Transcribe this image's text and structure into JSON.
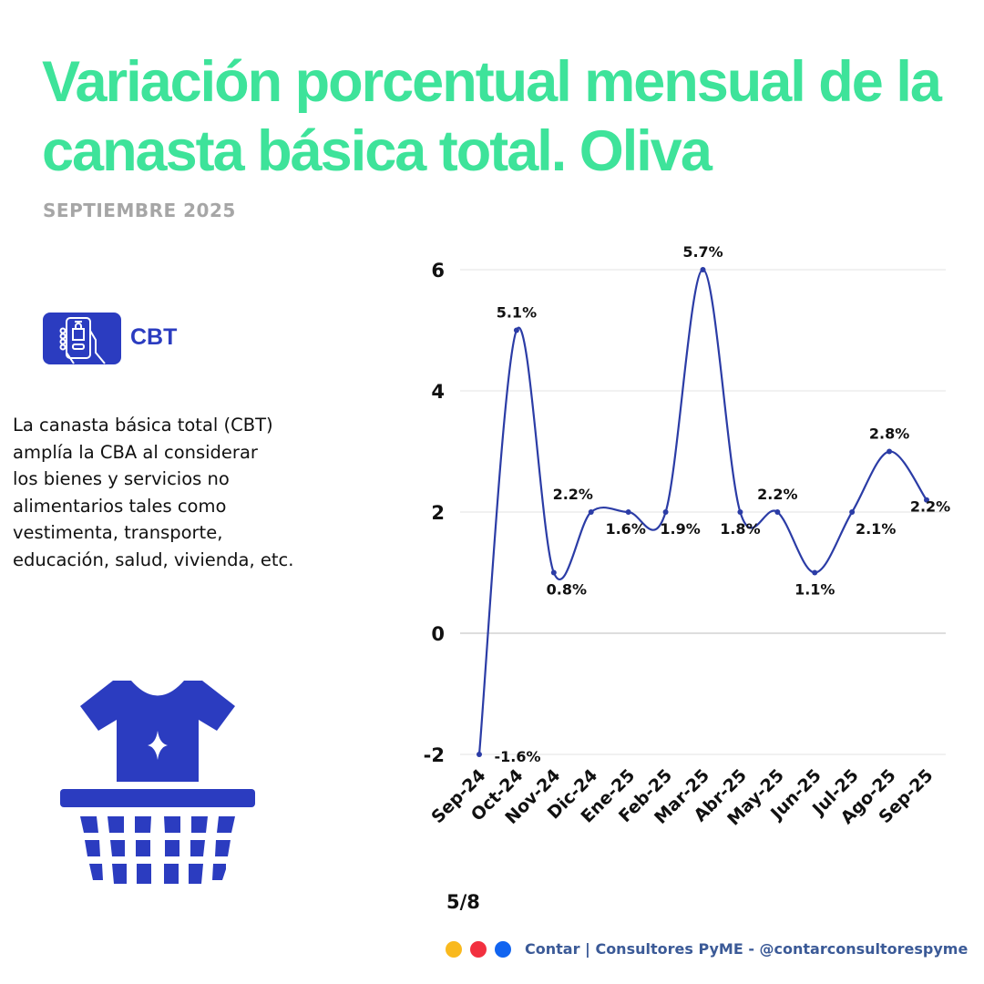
{
  "header": {
    "title": "Variación porcentual mensual de la canasta básica total.  Oliva",
    "subtitle": "SEPTIEMBRE 2025"
  },
  "sidebar": {
    "badge_label": "CBT",
    "badge_icon": "phone-shopping-bag-icon",
    "description": "La canasta básica total (CBT)\n amplía la CBA al considerar\nlos bienes y servicios no\nalimentarios tales como\nvestimenta, transporte,\neducación, salud, vivienda, etc.",
    "illustration": "shirt-in-basket-icon"
  },
  "page_number": "5/8",
  "footer": {
    "dots": [
      "#f9b91e",
      "#f2303f",
      "#1164f0"
    ],
    "text": "Contar | Consultores PyME - @contarconsultorespyme"
  },
  "colors": {
    "title": "#3ee39a",
    "accent": "#2b3cc0",
    "line": "#2b3ca6"
  },
  "chart_data": {
    "type": "line",
    "title": "",
    "xlabel": "",
    "ylabel": "",
    "categories": [
      "Sep-24",
      "Oct-24",
      "Nov-24",
      "Dic-24",
      "Ene-25",
      "Feb-25",
      "Mar-25",
      "Abr-25",
      "May-25",
      "Jun-25",
      "Jul-25",
      "Ago-25",
      "Sep-25"
    ],
    "values": [
      -2,
      5,
      1,
      2,
      2,
      2,
      6,
      2,
      2,
      1,
      2,
      3,
      2.2
    ],
    "data_labels": [
      "-1.6%",
      "5.1%",
      "0.8%",
      "2.2%",
      "1.6%",
      "1.9%",
      "5.7%",
      "1.8%",
      "2.2%",
      "1.1%",
      "2.1%",
      "2.8%",
      "2.2%"
    ],
    "label_placement": [
      "below",
      "above",
      "below",
      "above",
      "below",
      "below",
      "above",
      "below",
      "above",
      "below",
      "below",
      "above",
      "below"
    ],
    "yticks": [
      -2,
      0,
      2,
      4,
      6
    ],
    "ylim": [
      -2,
      6
    ],
    "grid": true,
    "legend": "none"
  }
}
